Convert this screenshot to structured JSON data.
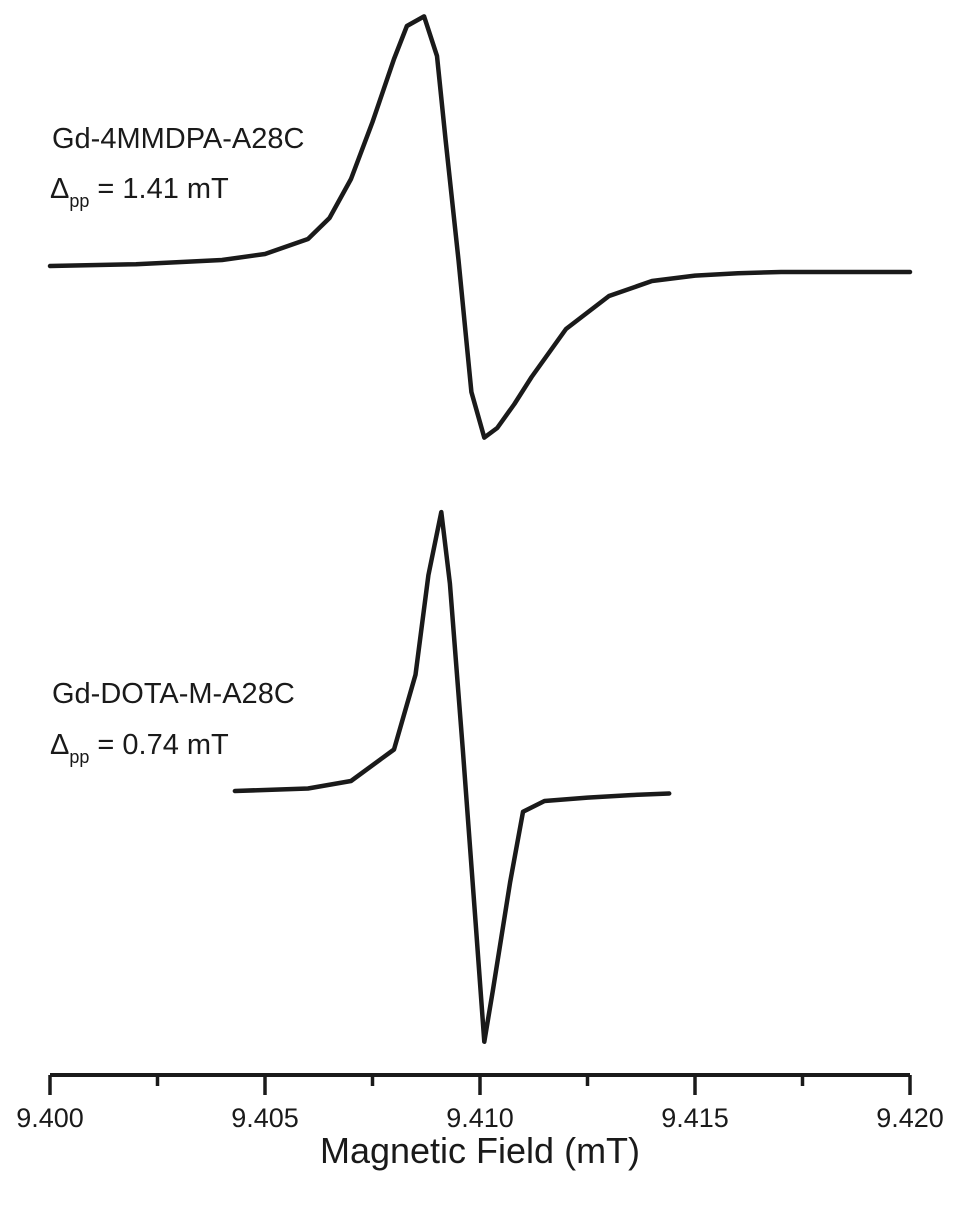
{
  "chart_data": {
    "type": "line",
    "title": "",
    "xlabel": "Magnetic Field (mT)",
    "ylabel": "",
    "xlim": [
      9.4,
      9.42
    ],
    "x_ticks": [
      {
        "value": 9.4,
        "label": "9.400"
      },
      {
        "value": 9.405,
        "label": "9.405"
      },
      {
        "value": 9.41,
        "label": "9.410"
      },
      {
        "value": 9.415,
        "label": "9.415"
      },
      {
        "value": 9.42,
        "label": "9.420"
      }
    ],
    "minor_ticks": [
      9.4025,
      9.4075,
      9.4125,
      9.4175
    ],
    "grid": false,
    "series": [
      {
        "annotation": {
          "name": "Gd-4MMDPA-A28C",
          "delta_symbol": "Δ",
          "delta_sub": "pp",
          "delta_value": "= 1.41 mT"
        },
        "x": [
          9.4,
          9.402,
          9.404,
          9.405,
          9.406,
          9.4065,
          9.407,
          9.4075,
          9.408,
          9.4083,
          9.4087,
          9.409,
          9.4092,
          9.4095,
          9.4098,
          9.4101,
          9.4104,
          9.4108,
          9.4112,
          9.412,
          9.413,
          9.414,
          9.415,
          9.416,
          9.417,
          9.418,
          9.419,
          9.42
        ],
        "y": [
          0.1,
          0.13,
          0.2,
          0.3,
          0.55,
          0.9,
          1.55,
          2.5,
          3.55,
          4.1,
          4.26,
          3.6,
          2.2,
          0.2,
          -2.0,
          -2.76,
          -2.6,
          -2.2,
          -1.75,
          -0.95,
          -0.4,
          -0.15,
          -0.06,
          -0.02,
          0.0,
          0.0,
          0.0,
          0.0
        ]
      },
      {
        "annotation": {
          "name": "Gd-DOTA-M-A28C",
          "delta_symbol": "Δ",
          "delta_sub": "pp",
          "delta_value": "= 0.74 mT"
        },
        "x": [
          9.4043,
          9.406,
          9.407,
          9.408,
          9.4085,
          9.4088,
          9.4091,
          9.4093,
          9.4096,
          9.4099,
          9.4101,
          9.4103,
          9.4107,
          9.411,
          9.4115,
          9.4125,
          9.4135,
          9.4144
        ],
        "y": [
          0.0,
          0.03,
          0.12,
          0.5,
          1.4,
          2.6,
          3.36,
          2.5,
          0.5,
          -1.6,
          -3.02,
          -2.4,
          -1.1,
          -0.25,
          -0.12,
          -0.08,
          -0.05,
          -0.03
        ]
      }
    ]
  }
}
